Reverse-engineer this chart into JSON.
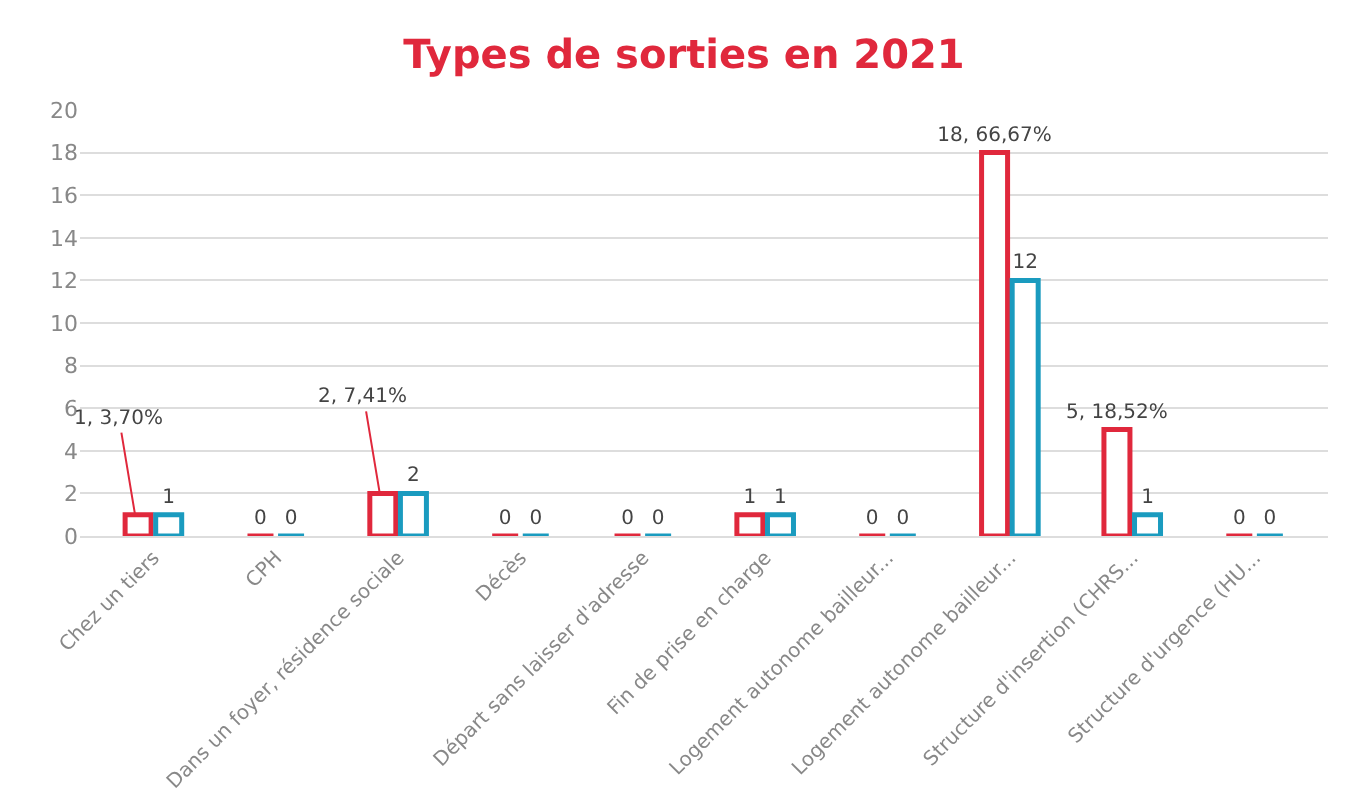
{
  "chart_data": {
    "type": "bar",
    "title": "Types de sorties en 2021",
    "categories": [
      "Chez un tiers",
      "CPH",
      "Dans un foyer, résidence sociale",
      "Décès",
      "Départ sans laisser d'adresse",
      "Fin de prise en charge",
      "Logement autonome bailleur...",
      "Logement autonome bailleur...",
      "Structure d'insertion (CHRS...",
      "Structure d'urgence (HU..."
    ],
    "series": [
      {
        "color": "#e0283c",
        "values": [
          1,
          0,
          2,
          0,
          0,
          1,
          0,
          18,
          5,
          0
        ],
        "value_labels": [
          "1, 3,70%",
          "0",
          "2, 7,41%",
          "0",
          "0",
          "1",
          "0",
          "18, 66,67%",
          "5, 18,52%",
          "0"
        ]
      },
      {
        "color": "#1a9bbf",
        "values": [
          1,
          0,
          2,
          0,
          0,
          1,
          0,
          12,
          1,
          0
        ],
        "value_labels": [
          "1",
          "0",
          "2",
          "0",
          "0",
          "1",
          "0",
          "12",
          "1",
          "0"
        ]
      }
    ],
    "ylim": [
      0,
      20
    ],
    "yticks": [
      0,
      2,
      4,
      6,
      8,
      10,
      12,
      14,
      16,
      18,
      20
    ],
    "grid": "y"
  }
}
